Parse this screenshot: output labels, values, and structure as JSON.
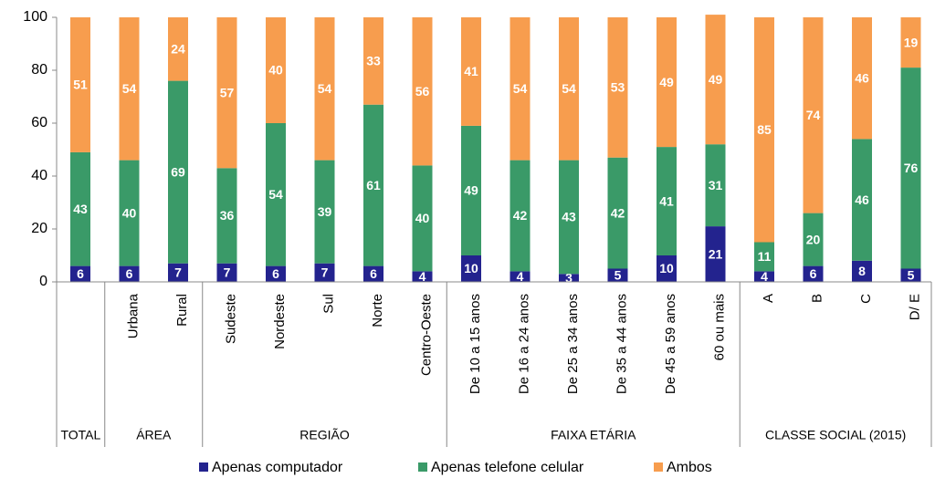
{
  "chart_data": {
    "type": "stacked_bar",
    "categories": [
      null,
      "Urbana",
      "Rural",
      "Sudeste",
      "Nordeste",
      "Sul",
      "Norte",
      "Centro-Oeste",
      "De 10 a 15 anos",
      "De 16 a 24 anos",
      "De 25 a 34 anos",
      "De 35 a 44 anos",
      "De 45 a 59 anos",
      "60 ou mais",
      "A",
      "B",
      "C",
      "D/ E"
    ],
    "groups": [
      "TOTAL",
      "ÁREA",
      "REGIÃO",
      "FAIXA ETÁRIA",
      "CLASSE SOCIAL (2015)"
    ],
    "series": [
      {
        "name": "Apenas computador",
        "color": "#23238e",
        "values": [
          6,
          6,
          7,
          7,
          6,
          7,
          6,
          4,
          10,
          4,
          3,
          5,
          10,
          21,
          4,
          6,
          8,
          5
        ]
      },
      {
        "name": "Apenas telefone celular",
        "color": "#3a9a68",
        "values": [
          43,
          40,
          69,
          36,
          54,
          39,
          61,
          40,
          49,
          42,
          43,
          42,
          41,
          31,
          11,
          20,
          46,
          76
        ]
      },
      {
        "name": "Ambos",
        "color": "#f79d4e",
        "values": [
          51,
          54,
          24,
          57,
          40,
          54,
          33,
          56,
          41,
          54,
          54,
          53,
          49,
          49,
          85,
          74,
          46,
          19
        ]
      }
    ],
    "ylim": [
      0,
      100
    ],
    "yticks": [
      0,
      20,
      40,
      60,
      80,
      100
    ],
    "grid": false,
    "legend": "bottom"
  }
}
